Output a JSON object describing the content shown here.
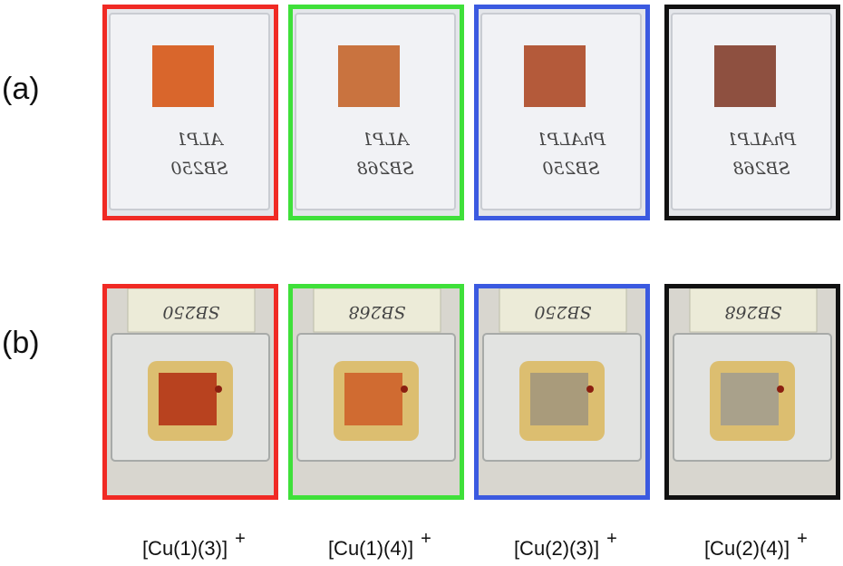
{
  "rows": [
    {
      "label": "(a)",
      "notes": [
        [
          "ALP1",
          "SB250"
        ],
        [
          "ALP1",
          "SB268"
        ],
        [
          "PhALP1",
          "SB250"
        ],
        [
          "PhALP1",
          "SB268"
        ]
      ]
    },
    {
      "label": "(b)",
      "notes": [
        [
          "SB250"
        ],
        [
          "SB268"
        ],
        [
          "SB250"
        ],
        [
          "SB268"
        ]
      ]
    }
  ],
  "columns": [
    {
      "label": "[Cu(1)(3)]",
      "charge": "+",
      "frame_color": "#f02a24",
      "square_colors": [
        "#d9662c",
        "#b8421f"
      ]
    },
    {
      "label": "[Cu(1)(4)]",
      "charge": "+",
      "frame_color": "#3fe03a",
      "square_colors": [
        "#c9733f",
        "#d06b31"
      ]
    },
    {
      "label": "[Cu(2)(3)]",
      "charge": "+",
      "frame_color": "#3b5ae0",
      "square_colors": [
        "#b45a3a",
        "#a99b7b"
      ]
    },
    {
      "label": "[Cu(2)(4)]",
      "charge": "+",
      "frame_color": "#111111",
      "square_colors": [
        "#8e5040",
        "#a9a18b"
      ]
    }
  ]
}
